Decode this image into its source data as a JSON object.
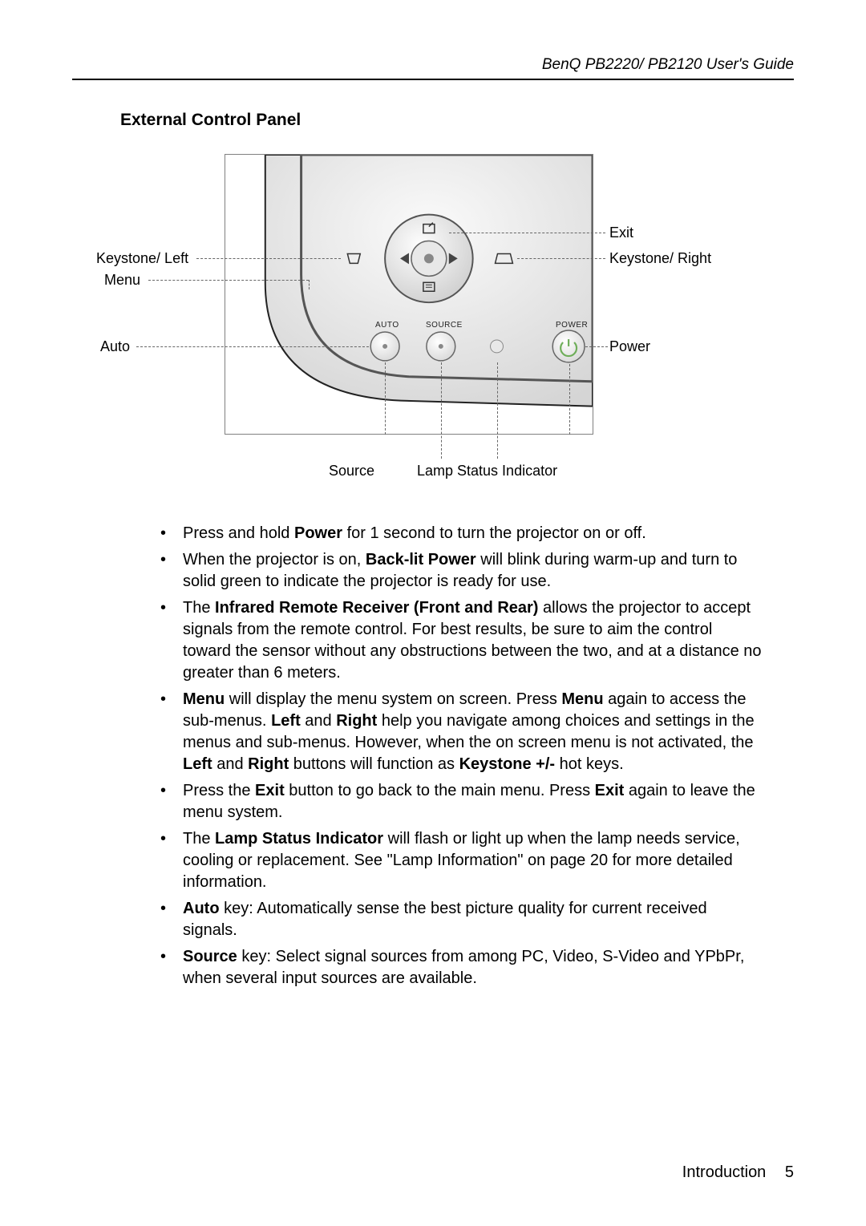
{
  "header": "BenQ PB2220/ PB2120 User's Guide",
  "section_title": "External Control Panel",
  "labels": {
    "keystone_left": "Keystone/ Left",
    "menu": "Menu",
    "auto": "Auto",
    "exit": "Exit",
    "keystone_right": "Keystone/ Right",
    "power": "Power",
    "source": "Source",
    "lamp": "Lamp Status Indicator",
    "btn_auto": "AUTO",
    "btn_source": "SOURCE",
    "btn_power": "POWER"
  },
  "bullets": [
    "Press and hold <b>Power</b> for 1 second to turn the projector on or off.",
    "When the projector is on, <b>Back-lit Power</b> will blink during warm-up and turn to solid  green to indicate the projector is ready for use.",
    "The <b>Infrared Remote Receiver (Front and Rear)</b> allows the projector to accept signals from the remote control. For best results, be sure to aim the control toward the sensor without any obstructions between the two, and at a distance no greater than 6 meters.",
    "<b>Menu</b> will display the menu system on screen. Press <b>Menu</b> again to access the sub-menus. <b>Left</b> and <b>Right</b> help you navigate among choices and settings in the menus and sub-menus. However, when the on screen menu is not activated, the <b>Left</b> and <b>Right</b> buttons will function as <b>Keystone +/-</b> hot keys.",
    "Press the <b>Exit</b> button to go back to the main menu. Press <b>Exit</b> again to leave the menu system.",
    "The <b>Lamp Status Indicator</b> will flash or light up when the lamp needs service, cooling or replacement. See \"Lamp Information\" on page 20 for more detailed information.",
    "<b>Auto</b> key: Automatically sense the best picture quality for current received signals.",
    "<b>Source</b> key: Select signal sources from among PC, Video, S-Video and YPbPr, when several input sources are available."
  ],
  "footer": {
    "section": "Introduction",
    "page": "5"
  },
  "colors": {
    "body_grad_a": "#f4f4f4",
    "body_grad_b": "#d8d8d8",
    "dpad_fill": "#e8e8e8",
    "btn_fill": "#f0f0f0",
    "led_green": "#6fae5a"
  }
}
